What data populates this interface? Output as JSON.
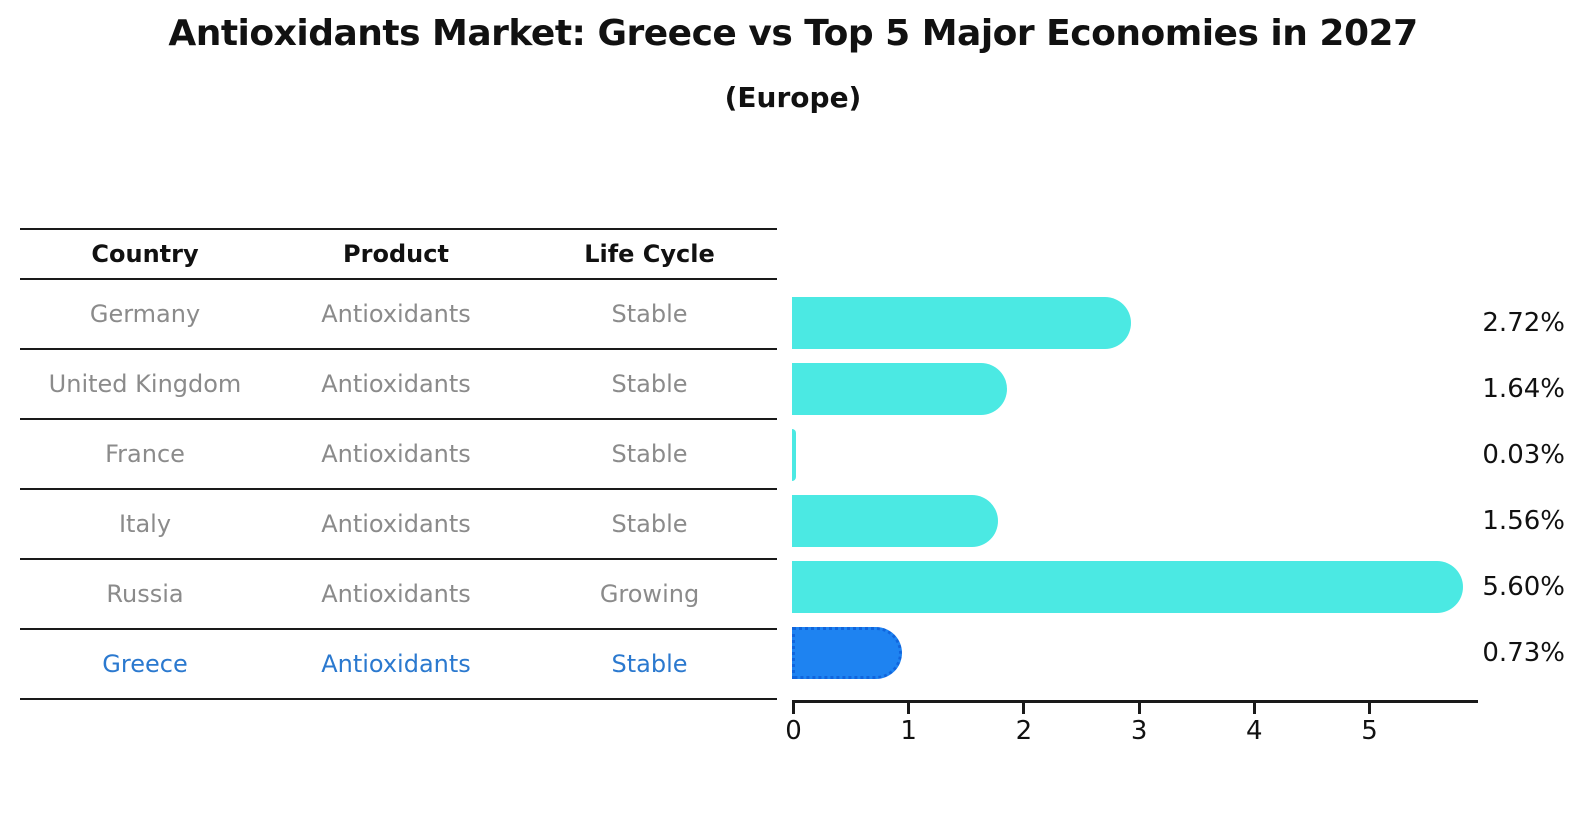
{
  "title": "Antioxidants Market: Greece vs Top 5 Major Economies in 2027",
  "subtitle": "(Europe)",
  "table": {
    "headers": [
      "Country",
      "Product",
      "Life Cycle"
    ],
    "rows": [
      {
        "country": "Germany",
        "product": "Antioxidants",
        "life_cycle": "Stable",
        "highlight": false
      },
      {
        "country": "United Kingdom",
        "product": "Antioxidants",
        "life_cycle": "Stable",
        "highlight": false
      },
      {
        "country": "France",
        "product": "Antioxidants",
        "life_cycle": "Stable",
        "highlight": false
      },
      {
        "country": "Italy",
        "product": "Antioxidants",
        "life_cycle": "Stable",
        "highlight": false
      },
      {
        "country": "Russia",
        "product": "Antioxidants",
        "life_cycle": "Growing",
        "highlight": false
      },
      {
        "country": "Greece",
        "product": "Antioxidants",
        "life_cycle": "Stable",
        "highlight": true
      }
    ]
  },
  "chart_data": {
    "type": "bar",
    "orientation": "horizontal",
    "title": "Antioxidants Market: Greece vs Top 5 Major Economies in 2027",
    "subtitle": "(Europe)",
    "categories": [
      "Germany",
      "United Kingdom",
      "France",
      "Italy",
      "Russia",
      "Greece"
    ],
    "values": [
      2.72,
      1.64,
      0.03,
      1.56,
      5.6,
      0.73
    ],
    "value_labels": [
      "2.72%",
      "1.64%",
      "0.03%",
      "1.56%",
      "5.60%",
      "0.73%"
    ],
    "x_ticks": [
      "0",
      "1",
      "2",
      "3",
      "4",
      "5"
    ],
    "xlim": [
      0,
      5.95
    ],
    "grid": false,
    "legend": false,
    "bar_color": "#4be9e3",
    "highlight_bar_color": "#1e83f1",
    "highlight_index": 5,
    "highlight_text_color": "#2b79cf",
    "row_text_color": "#8b8b8b",
    "axis_color": "#1a1a1a"
  }
}
